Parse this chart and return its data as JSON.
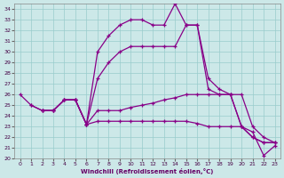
{
  "xlabel": "Windchill (Refroidissement éolien,°C)",
  "xlim": [
    -0.5,
    23.5
  ],
  "ylim": [
    20,
    34.5
  ],
  "yticks": [
    20,
    21,
    22,
    23,
    24,
    25,
    26,
    27,
    28,
    29,
    30,
    31,
    32,
    33,
    34
  ],
  "xticks": [
    0,
    1,
    2,
    3,
    4,
    5,
    6,
    7,
    8,
    9,
    10,
    11,
    12,
    13,
    14,
    15,
    16,
    17,
    18,
    19,
    20,
    21,
    22,
    23
  ],
  "line_color": "#880088",
  "bg_color": "#cce8e8",
  "grid_color": "#99cccc",
  "lines": [
    {
      "x": [
        0,
        1,
        2,
        3,
        4,
        5,
        6,
        7,
        8,
        9,
        10,
        11,
        12,
        13,
        14,
        15,
        16,
        17,
        18,
        19,
        20,
        21,
        22,
        23
      ],
      "y": [
        26,
        25,
        24.5,
        24.5,
        25.5,
        25.5,
        23.2,
        30,
        31.5,
        32.5,
        33,
        33,
        32.5,
        32.5,
        34.5,
        32.5,
        32.5,
        27.5,
        26.5,
        26,
        23,
        22,
        21.5,
        21.5
      ]
    },
    {
      "x": [
        1,
        2,
        3,
        4,
        5,
        6,
        7,
        8,
        9,
        10,
        11,
        12,
        13,
        14,
        15,
        16,
        17,
        18,
        19,
        20,
        21,
        22,
        23
      ],
      "y": [
        25,
        24.5,
        24.5,
        25.5,
        25.5,
        23.2,
        27.5,
        29,
        30,
        30.5,
        30.5,
        30.5,
        30.5,
        30.5,
        32.5,
        32.5,
        26.5,
        26,
        26,
        23,
        22,
        21.5,
        21.5
      ]
    },
    {
      "x": [
        2,
        3,
        4,
        5,
        6,
        7,
        8,
        9,
        10,
        11,
        12,
        13,
        14,
        15,
        16,
        17,
        18,
        19,
        20,
        21,
        22,
        23
      ],
      "y": [
        24.5,
        24.5,
        25.5,
        25.5,
        23.2,
        24.5,
        24.5,
        24.5,
        24.8,
        25,
        25.2,
        25.5,
        25.7,
        26,
        26,
        26,
        26,
        26,
        26,
        23,
        22,
        21.5
      ]
    },
    {
      "x": [
        2,
        3,
        4,
        5,
        6,
        7,
        8,
        9,
        10,
        11,
        12,
        13,
        14,
        15,
        16,
        17,
        18,
        19,
        20,
        21,
        22,
        23
      ],
      "y": [
        24.5,
        24.5,
        25.5,
        25.5,
        23.2,
        23.5,
        23.5,
        23.5,
        23.5,
        23.5,
        23.5,
        23.5,
        23.5,
        23.5,
        23.3,
        23,
        23,
        23,
        23,
        22.5,
        20.3,
        21.2
      ]
    }
  ]
}
